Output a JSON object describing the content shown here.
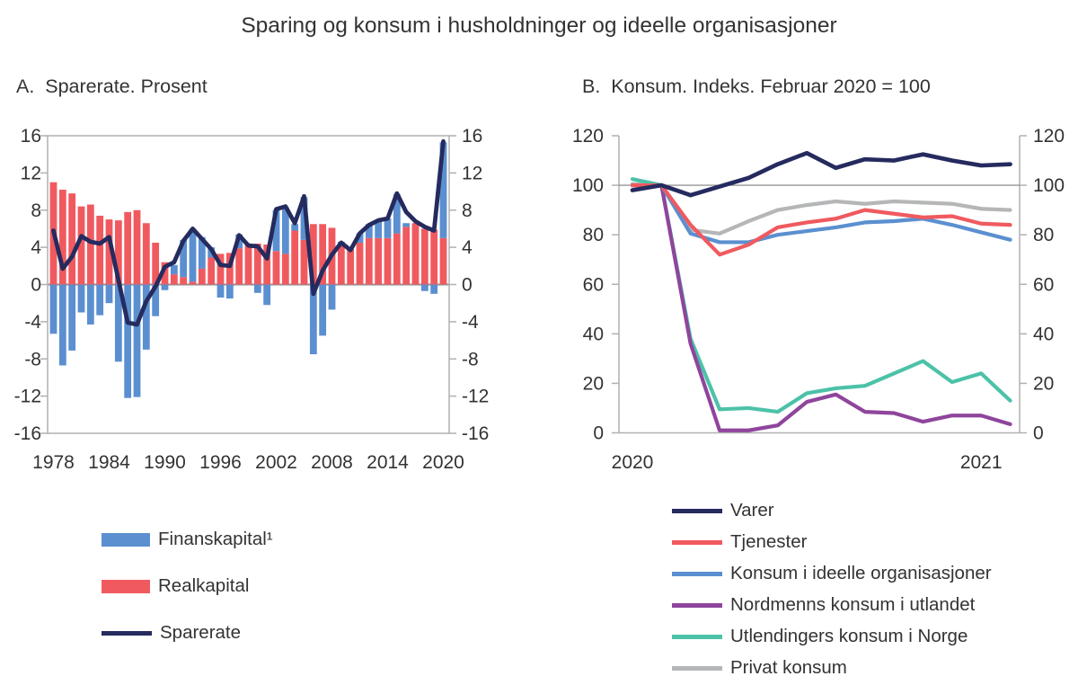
{
  "title": "Sparing og konsum i husholdninger og ideelle organisasjoner",
  "colors": {
    "background": "#ffffff",
    "frame": "#b1b1b1",
    "zero_line": "#8f8f8f",
    "ref_line": "#7f7f7f",
    "text": "#333333",
    "navy": "#252b5e",
    "red": "#f05a5f",
    "blue": "#5b8fd0",
    "purple": "#8f459c",
    "teal": "#4cc2a8",
    "gray": "#b4b6b8"
  },
  "chart_data": [
    {
      "type": "bar+line",
      "panel": "A",
      "title": "A.  Sparerate. Prosent",
      "ylabel": "",
      "ylim": [
        -16,
        16
      ],
      "ytick_step": 4,
      "xticks": [
        1978,
        1984,
        1990,
        1996,
        2002,
        2008,
        2014,
        2020
      ],
      "years": [
        1978,
        1979,
        1980,
        1981,
        1982,
        1983,
        1984,
        1985,
        1986,
        1987,
        1988,
        1989,
        1990,
        1991,
        1992,
        1993,
        1994,
        1995,
        1996,
        1997,
        1998,
        1999,
        2000,
        2001,
        2002,
        2003,
        2004,
        2005,
        2006,
        2007,
        2008,
        2009,
        2010,
        2011,
        2012,
        2013,
        2014,
        2015,
        2016,
        2017,
        2018,
        2019,
        2020
      ],
      "series": [
        {
          "name": "Finanskapital¹",
          "kind": "bar",
          "color": "#5b8fd0",
          "values": [
            -5.3,
            -8.7,
            -7.1,
            -3.0,
            -4.3,
            -3.3,
            -2.0,
            -8.3,
            -12.2,
            -12.1,
            -7.0,
            -3.4,
            -0.6,
            1.0,
            4.0,
            5.7,
            3.4,
            1.1,
            -1.4,
            -1.5,
            1.5,
            0.0,
            -0.9,
            -2.2,
            4.4,
            5.0,
            0.7,
            4.6,
            -7.5,
            -5.5,
            -2.7,
            0.2,
            0.0,
            1.0,
            1.5,
            1.9,
            2.1,
            4.2,
            0.4,
            0.0,
            -0.7,
            -1.0,
            10.3
          ]
        },
        {
          "name": "Realkapital",
          "kind": "bar",
          "color": "#f05a5f",
          "values": [
            11.0,
            10.2,
            9.8,
            8.4,
            8.6,
            7.4,
            7.0,
            6.9,
            7.8,
            8.0,
            6.6,
            4.5,
            2.4,
            1.1,
            0.8,
            0.3,
            1.7,
            2.9,
            3.3,
            3.4,
            3.9,
            4.3,
            4.4,
            4.3,
            3.6,
            3.3,
            5.8,
            4.8,
            6.5,
            6.5,
            6.1,
            4.4,
            3.8,
            4.5,
            5.0,
            5.0,
            5.0,
            5.5,
            6.2,
            6.6,
            6.0,
            5.9,
            5.0
          ]
        },
        {
          "name": "Sparerate",
          "kind": "line",
          "color": "#252b5e",
          "width": 4.8,
          "values": [
            5.8,
            1.7,
            3.0,
            5.2,
            4.6,
            4.4,
            5.1,
            0.5,
            -4.1,
            -4.3,
            -1.8,
            -0.2,
            1.9,
            2.4,
            4.7,
            6.0,
            4.9,
            3.8,
            2.1,
            2.0,
            5.3,
            4.2,
            4.1,
            2.8,
            8.1,
            8.4,
            6.6,
            9.5,
            -1.0,
            1.5,
            3.2,
            4.5,
            3.7,
            5.5,
            6.4,
            6.9,
            7.1,
            9.8,
            7.8,
            6.8,
            6.2,
            5.8,
            15.4
          ]
        }
      ]
    },
    {
      "type": "line",
      "panel": "B",
      "title": "B.  Konsum. Indeks. Februar 2020 = 100",
      "ylim": [
        0,
        120
      ],
      "ytick_step": 20,
      "ref_line": 100,
      "xticks": [
        {
          "label": "2020",
          "index": 0
        },
        {
          "label": "2021",
          "index": 12
        }
      ],
      "months": [
        "2020-01",
        "2020-02",
        "2020-03",
        "2020-04",
        "2020-05",
        "2020-06",
        "2020-07",
        "2020-08",
        "2020-09",
        "2020-10",
        "2020-11",
        "2020-12",
        "2021-01",
        "2021-02"
      ],
      "series": [
        {
          "name": "Varer",
          "color": "#252b5e",
          "width": 4.7,
          "values": [
            98,
            100,
            96,
            99.5,
            103,
            108.5,
            113,
            107,
            110.5,
            110,
            112.5,
            110,
            108,
            108.5
          ]
        },
        {
          "name": "Tjenester",
          "color": "#f05a5f",
          "width": 4.2,
          "values": [
            100,
            100,
            84,
            72,
            76,
            83,
            85,
            86.5,
            90,
            88.5,
            87,
            87.5,
            84.5,
            84
          ]
        },
        {
          "name": "Konsum i ideelle organisasjoner",
          "color": "#5b8fd0",
          "width": 4.2,
          "values": [
            100,
            100,
            80.5,
            77,
            77,
            80,
            81.5,
            83,
            85,
            85.5,
            86.5,
            84,
            81,
            78
          ]
        },
        {
          "name": "Nordmenns konsum i utlandet",
          "color": "#8f459c",
          "width": 4.2,
          "values": [
            100,
            100,
            36,
            1,
            1,
            3,
            12.5,
            15.5,
            8.5,
            8,
            4.5,
            7,
            7,
            3.5
          ]
        },
        {
          "name": "Utlendingers konsum i Norge",
          "color": "#4cc2a8",
          "width": 4.2,
          "values": [
            102.5,
            100,
            38,
            9.5,
            10,
            8.5,
            16,
            18,
            19,
            24,
            29,
            20.5,
            24,
            13
          ]
        },
        {
          "name": "Privat konsum",
          "color": "#b4b6b8",
          "width": 4.2,
          "values": [
            100.5,
            100,
            82,
            80.5,
            85.5,
            90,
            92,
            93.5,
            92.5,
            93.5,
            93,
            92.5,
            90.5,
            90
          ]
        }
      ]
    }
  ]
}
